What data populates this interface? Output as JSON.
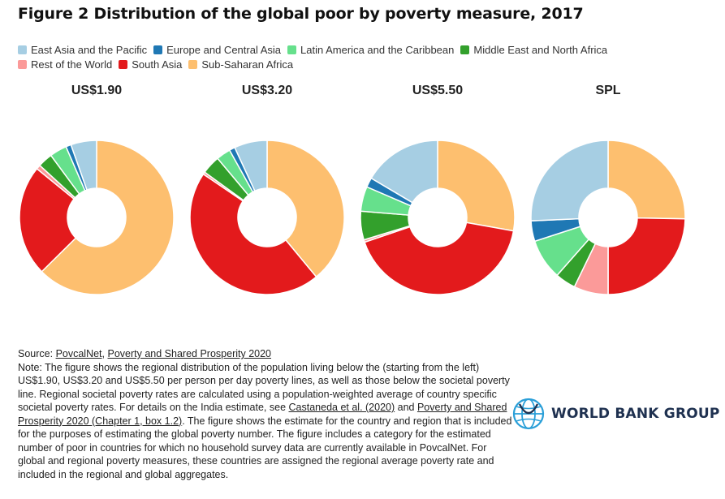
{
  "title": "Figure 2 Distribution of the global poor by poverty measure, 2017",
  "colors": {
    "East Asia and the Pacific": "#a6cee3",
    "Europe and Central Asia": "#1f78b4",
    "Latin America and the Caribbean": "#66e08c",
    "Middle East and North Africa": "#33a02c",
    "Rest of the World": "#fb9a99",
    "South Asia": "#e31a1c",
    "Sub-Saharan Africa": "#fdbf6f"
  },
  "chart_data": [
    {
      "type": "pie",
      "subtitle": "US$1.90",
      "categories": [
        "Sub-Saharan Africa",
        "South Asia",
        "Rest of the World",
        "Middle East and North Africa",
        "Latin America and the Caribbean",
        "Europe and Central Asia",
        "East Asia and the Pacific"
      ],
      "values": [
        62.6,
        23.3,
        0.9,
        3.1,
        3.6,
        1.1,
        5.4
      ]
    },
    {
      "type": "pie",
      "subtitle": "US$3.20",
      "categories": [
        "Sub-Saharan Africa",
        "South Asia",
        "Rest of the World",
        "Middle East and North Africa",
        "Latin America and the Caribbean",
        "Europe and Central Asia",
        "East Asia and the Pacific"
      ],
      "values": [
        39.0,
        45.5,
        0.5,
        3.9,
        3.0,
        1.2,
        6.9
      ]
    },
    {
      "type": "pie",
      "subtitle": "US$5.50",
      "categories": [
        "Sub-Saharan Africa",
        "South Asia",
        "Rest of the World",
        "Middle East and North Africa",
        "Latin America and the Caribbean",
        "Europe and Central Asia",
        "East Asia and the Pacific"
      ],
      "values": [
        27.8,
        42.0,
        0.5,
        6.0,
        5.2,
        2.0,
        16.5
      ]
    },
    {
      "type": "pie",
      "subtitle": "SPL",
      "categories": [
        "Sub-Saharan Africa",
        "South Asia",
        "Rest of the World",
        "Middle East and North Africa",
        "Latin America and the Caribbean",
        "Europe and Central Asia",
        "East Asia and the Pacific"
      ],
      "values": [
        25.3,
        24.7,
        7.2,
        4.3,
        8.5,
        4.3,
        25.7
      ]
    }
  ],
  "legend": {
    "items": [
      "East Asia and the Pacific",
      "Europe and Central Asia",
      "Latin America and the Caribbean",
      "Middle East and North Africa",
      "Rest of the World",
      "South Asia",
      "Sub-Saharan Africa"
    ]
  },
  "note": {
    "source_label": "Source: ",
    "source_link1": "PovcalNet",
    "source_sep": ", ",
    "source_link2": "Poverty and Shared Prosperity 2020",
    "text1": "Note: The figure shows the regional distribution of the population living below the (starting from the left) US$1.90, US$3.20 and US$5.50 per person per day poverty lines, as well as those below the societal poverty line. Regional societal poverty rates are calculated using a population-weighted average of country specific societal poverty rates. For details on the India estimate, see ",
    "link1": "Castaneda et al. (2020)",
    "text2": " and ",
    "link2": "Poverty and Shared Prosperity 2020 (Chapter 1, box 1.2)",
    "text3": ". The figure shows the estimate for the country and region that is included for the purposes of estimating the global poverty number. The figure includes a category for the estimated number of poor in countries for which no household survey data are currently available in PovcalNet. For global and regional poverty measures, these countries are assigned the regional average poverty rate and included in the regional and global aggregates."
  },
  "logo": {
    "text": "WORLD BANK GROUP"
  }
}
